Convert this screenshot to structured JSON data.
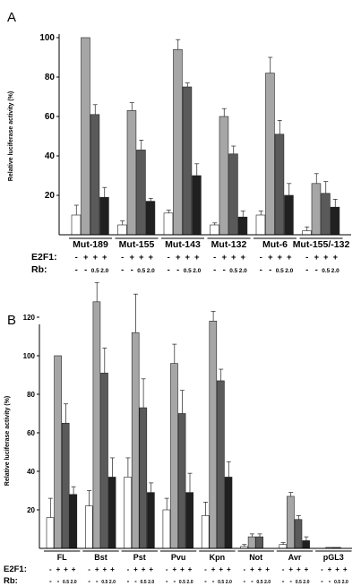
{
  "chart_data": [
    {
      "panel": "A",
      "type": "bar",
      "ylabel": "Relative luciferase activity (%)",
      "ylim": [
        0,
        100
      ],
      "yticks": [
        20,
        40,
        60,
        80,
        100
      ],
      "categories": [
        "Mut-189",
        "Mut-155",
        "Mut-143",
        "Mut-132",
        "Mut-6",
        "Mut-155/-132"
      ],
      "series_colors": [
        "#ffffff",
        "#a6a6a6",
        "#5a5a5a",
        "#202020"
      ],
      "series": [
        {
          "values": [
            10,
            5,
            11,
            5,
            10,
            2
          ],
          "errors": [
            5,
            2,
            1.5,
            1,
            2,
            2
          ]
        },
        {
          "values": [
            100,
            63,
            94,
            60,
            82,
            26
          ],
          "errors": [
            0,
            4,
            5,
            4,
            8,
            5
          ]
        },
        {
          "values": [
            61,
            43,
            75,
            41,
            51,
            21
          ],
          "errors": [
            5,
            5,
            2,
            4,
            7,
            6
          ]
        },
        {
          "values": [
            19,
            17,
            30,
            9,
            20,
            14
          ],
          "errors": [
            5,
            1.5,
            6,
            3,
            6,
            4
          ]
        }
      ],
      "rows": [
        {
          "label": "E2F1:",
          "values": [
            "-",
            "+",
            "+",
            "+"
          ]
        },
        {
          "label": "Rb:",
          "values": [
            "-",
            "-",
            "0.5",
            "2.0"
          ]
        }
      ]
    },
    {
      "panel": "B",
      "type": "bar",
      "ylabel": "Relative luciferase activity (%)",
      "ylim": [
        0,
        140
      ],
      "yticks": [
        20,
        40,
        60,
        80,
        100,
        120
      ],
      "categories": [
        "FL",
        "Bst",
        "Pst",
        "Pvu",
        "Kpn",
        "Not",
        "Avr",
        "pGL3"
      ],
      "series_colors": [
        "#ffffff",
        "#a6a6a6",
        "#5a5a5a",
        "#202020"
      ],
      "series": [
        {
          "values": [
            16,
            22,
            37,
            20,
            17,
            1,
            2,
            0
          ],
          "errors": [
            10,
            8,
            10,
            6,
            7,
            1,
            1,
            0
          ]
        },
        {
          "values": [
            100,
            128,
            112,
            96,
            118,
            6,
            27,
            0.5
          ],
          "errors": [
            0,
            10,
            20,
            10,
            5,
            1.5,
            2,
            0
          ]
        },
        {
          "values": [
            65,
            91,
            73,
            70,
            87,
            6,
            15,
            0.5
          ],
          "errors": [
            10,
            13,
            15,
            12,
            6,
            1.5,
            2,
            0
          ]
        },
        {
          "values": [
            28,
            37,
            29,
            29,
            37,
            0,
            4,
            0
          ],
          "errors": [
            4,
            10,
            5,
            10,
            8,
            0,
            2,
            0
          ]
        }
      ],
      "rows": [
        {
          "label": "E2F1:",
          "values": [
            "-",
            "+",
            "+",
            "+"
          ]
        },
        {
          "label": "Rb:",
          "values": [
            "-",
            "-",
            "0.5",
            "2.0"
          ]
        }
      ]
    }
  ]
}
